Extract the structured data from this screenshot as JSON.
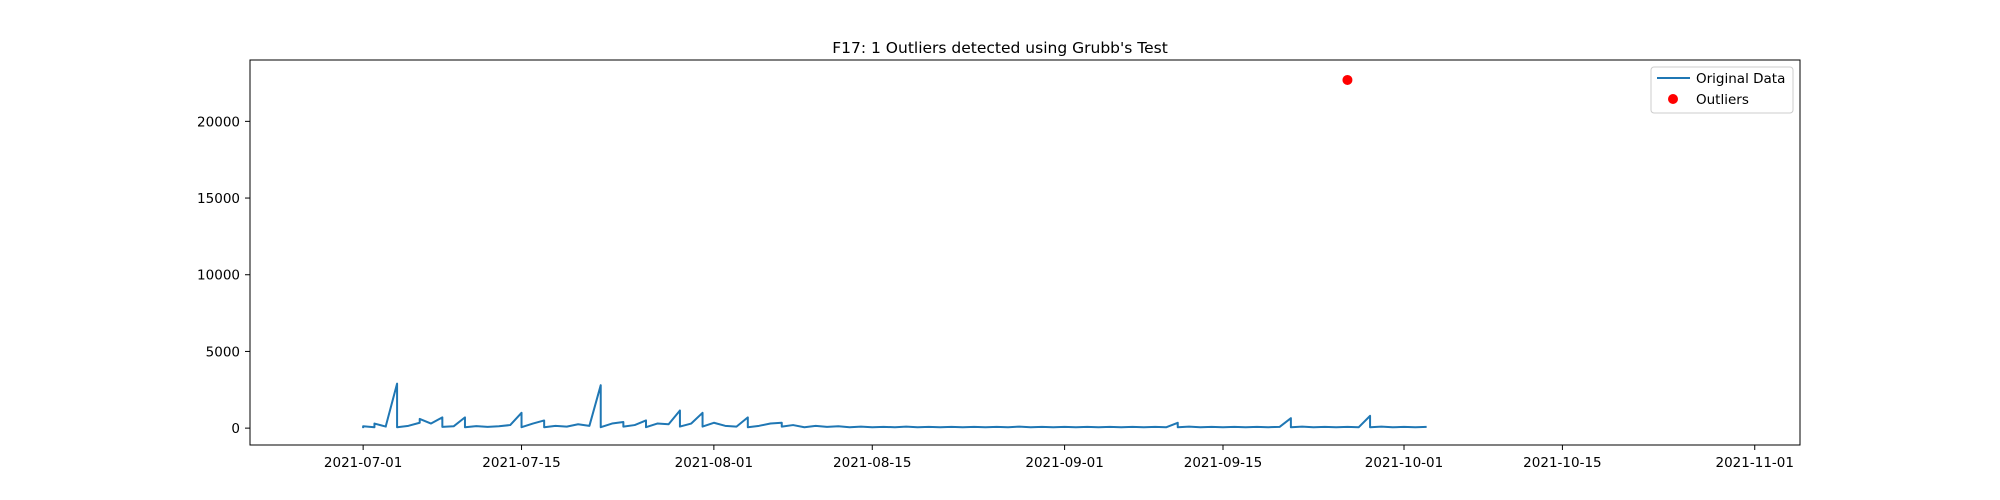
{
  "chart_data": {
    "type": "line",
    "title": "F17: 1 Outliers detected using Grubb's Test",
    "xlabel": "",
    "ylabel": "",
    "xlim": [
      "2021-06-21",
      "2021-11-05"
    ],
    "ylim": [
      -1100,
      24000
    ],
    "x_ticks": [
      "2021-07-01",
      "2021-07-15",
      "2021-08-01",
      "2021-08-15",
      "2021-09-01",
      "2021-09-15",
      "2021-10-01",
      "2021-10-15",
      "2021-11-01"
    ],
    "y_ticks": [
      0,
      5000,
      10000,
      15000,
      20000
    ],
    "legend": {
      "position": "top-right",
      "entries": [
        "Original Data",
        "Outliers"
      ]
    },
    "grid": false,
    "series": [
      {
        "name": "Original Data",
        "color": "#1f77b4",
        "style": "line",
        "points": [
          [
            "2021-07-01",
            0
          ],
          [
            "2021-07-01",
            120
          ],
          [
            "2021-07-02",
            60
          ],
          [
            "2021-07-02",
            300
          ],
          [
            "2021-07-03",
            100
          ],
          [
            "2021-07-03",
            120
          ],
          [
            "2021-07-04",
            2900
          ],
          [
            "2021-07-04",
            60
          ],
          [
            "2021-07-05",
            150
          ],
          [
            "2021-07-06",
            350
          ],
          [
            "2021-07-06",
            600
          ],
          [
            "2021-07-07",
            300
          ],
          [
            "2021-07-08",
            700
          ],
          [
            "2021-07-08",
            80
          ],
          [
            "2021-07-09",
            120
          ],
          [
            "2021-07-10",
            700
          ],
          [
            "2021-07-10",
            60
          ],
          [
            "2021-07-11",
            130
          ],
          [
            "2021-07-12",
            80
          ],
          [
            "2021-07-13",
            120
          ],
          [
            "2021-07-14",
            200
          ],
          [
            "2021-07-15",
            1000
          ],
          [
            "2021-07-15",
            60
          ],
          [
            "2021-07-16",
            300
          ],
          [
            "2021-07-17",
            500
          ],
          [
            "2021-07-17",
            60
          ],
          [
            "2021-07-18",
            150
          ],
          [
            "2021-07-19",
            100
          ],
          [
            "2021-07-20",
            250
          ],
          [
            "2021-07-21",
            150
          ],
          [
            "2021-07-22",
            2800
          ],
          [
            "2021-07-22",
            60
          ],
          [
            "2021-07-23",
            300
          ],
          [
            "2021-07-24",
            400
          ],
          [
            "2021-07-24",
            100
          ],
          [
            "2021-07-25",
            200
          ],
          [
            "2021-07-26",
            500
          ],
          [
            "2021-07-26",
            60
          ],
          [
            "2021-07-27",
            300
          ],
          [
            "2021-07-28",
            250
          ],
          [
            "2021-07-29",
            1150
          ],
          [
            "2021-07-29",
            100
          ],
          [
            "2021-07-30",
            300
          ],
          [
            "2021-07-31",
            1000
          ],
          [
            "2021-07-31",
            100
          ],
          [
            "2021-08-01",
            350
          ],
          [
            "2021-08-02",
            150
          ],
          [
            "2021-08-03",
            100
          ],
          [
            "2021-08-04",
            700
          ],
          [
            "2021-08-04",
            60
          ],
          [
            "2021-08-05",
            150
          ],
          [
            "2021-08-06",
            300
          ],
          [
            "2021-08-07",
            350
          ],
          [
            "2021-08-07",
            100
          ],
          [
            "2021-08-08",
            200
          ],
          [
            "2021-08-09",
            60
          ],
          [
            "2021-08-10",
            150
          ],
          [
            "2021-08-11",
            80
          ],
          [
            "2021-08-12",
            120
          ],
          [
            "2021-08-13",
            60
          ],
          [
            "2021-08-14",
            100
          ],
          [
            "2021-08-15",
            60
          ],
          [
            "2021-08-16",
            80
          ],
          [
            "2021-08-17",
            60
          ],
          [
            "2021-08-18",
            100
          ],
          [
            "2021-08-19",
            60
          ],
          [
            "2021-08-20",
            80
          ],
          [
            "2021-08-21",
            60
          ],
          [
            "2021-08-22",
            80
          ],
          [
            "2021-08-23",
            60
          ],
          [
            "2021-08-24",
            80
          ],
          [
            "2021-08-25",
            60
          ],
          [
            "2021-08-26",
            80
          ],
          [
            "2021-08-27",
            60
          ],
          [
            "2021-08-28",
            100
          ],
          [
            "2021-08-29",
            60
          ],
          [
            "2021-08-30",
            80
          ],
          [
            "2021-08-31",
            60
          ],
          [
            "2021-09-01",
            80
          ],
          [
            "2021-09-02",
            60
          ],
          [
            "2021-09-03",
            80
          ],
          [
            "2021-09-04",
            60
          ],
          [
            "2021-09-05",
            80
          ],
          [
            "2021-09-06",
            60
          ],
          [
            "2021-09-07",
            80
          ],
          [
            "2021-09-08",
            60
          ],
          [
            "2021-09-09",
            80
          ],
          [
            "2021-09-10",
            60
          ],
          [
            "2021-09-11",
            350
          ],
          [
            "2021-09-11",
            60
          ],
          [
            "2021-09-12",
            100
          ],
          [
            "2021-09-13",
            60
          ],
          [
            "2021-09-14",
            80
          ],
          [
            "2021-09-15",
            60
          ],
          [
            "2021-09-16",
            80
          ],
          [
            "2021-09-17",
            60
          ],
          [
            "2021-09-18",
            80
          ],
          [
            "2021-09-19",
            60
          ],
          [
            "2021-09-20",
            80
          ],
          [
            "2021-09-21",
            650
          ],
          [
            "2021-09-21",
            60
          ],
          [
            "2021-09-22",
            100
          ],
          [
            "2021-09-23",
            60
          ],
          [
            "2021-09-24",
            80
          ],
          [
            "2021-09-25",
            60
          ],
          [
            "2021-09-26",
            80
          ],
          [
            "2021-09-27",
            60
          ],
          [
            "2021-09-28",
            800
          ],
          [
            "2021-09-28",
            60
          ],
          [
            "2021-09-29",
            100
          ],
          [
            "2021-09-30",
            60
          ],
          [
            "2021-10-01",
            80
          ],
          [
            "2021-10-02",
            60
          ],
          [
            "2021-10-03",
            80
          ]
        ]
      },
      {
        "name": "Outliers",
        "color": "#ff0000",
        "style": "scatter",
        "points": [
          [
            "2021-09-26",
            22700
          ]
        ]
      }
    ]
  }
}
